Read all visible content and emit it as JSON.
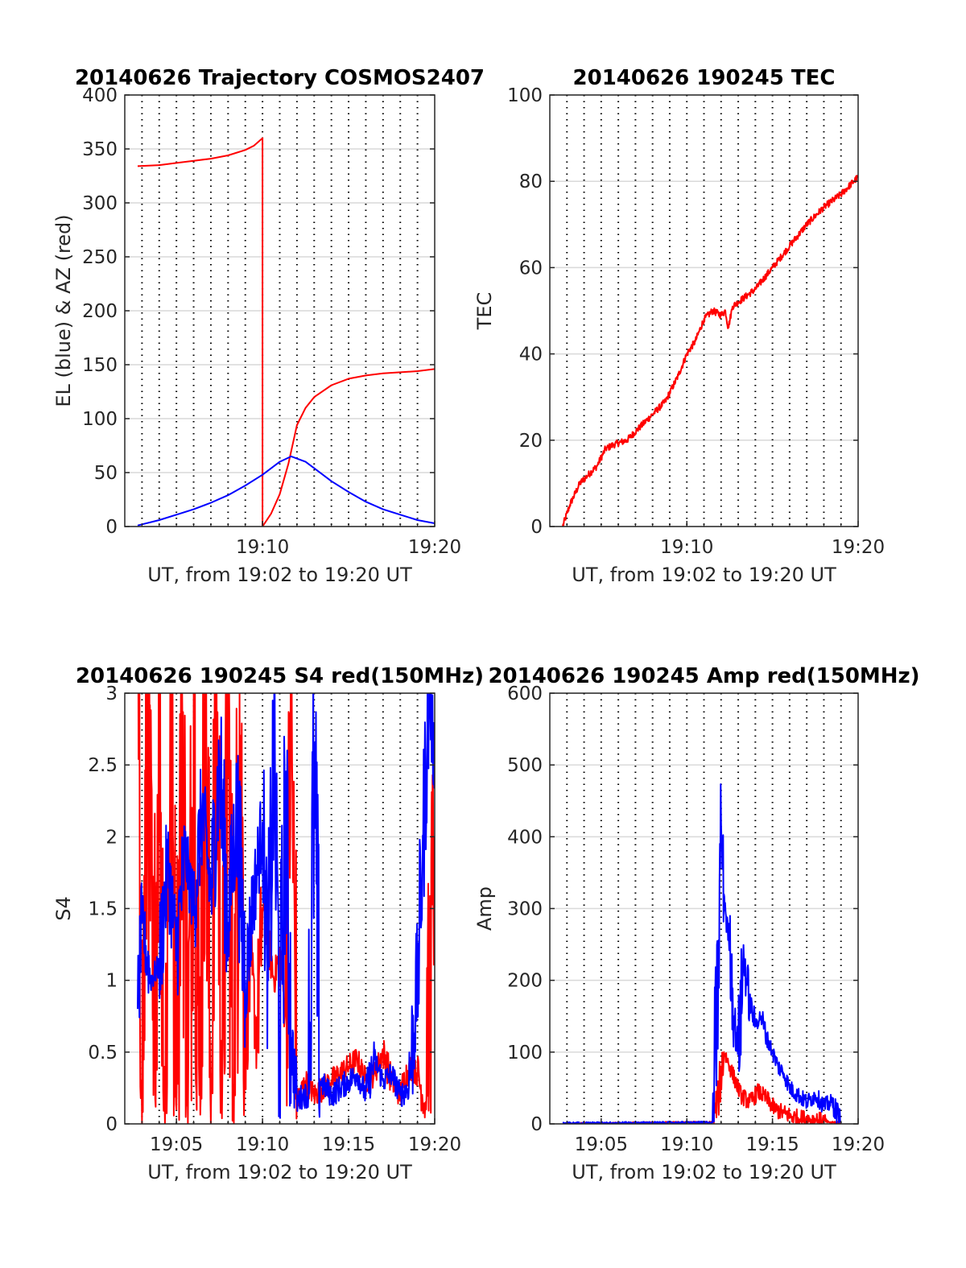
{
  "figure": {
    "background": "#ffffff",
    "grid_color": "#d9d9d9",
    "minor_grid_color": "#000000",
    "red": "#ff0000",
    "blue": "#0000ff"
  },
  "chart_data": [
    {
      "type": "line",
      "title": "20140626 Trajectory COSMOS2407",
      "xlabel": "UT, from 19:02 to 19:20 UT",
      "ylabel": "EL (blue) & AZ (red)",
      "xlim": [
        "19:02",
        "19:20"
      ],
      "ylim": [
        0,
        400
      ],
      "x_ticks": [
        "19:10",
        "19:20"
      ],
      "y_ticks": [
        "0",
        "50",
        "100",
        "150",
        "200",
        "250",
        "300",
        "350",
        "400"
      ],
      "grid": true,
      "minor_grid": true,
      "series": [
        {
          "color": "#ff0000",
          "x": [
            "19:02:45",
            "19:04:00",
            "19:05:00",
            "19:06:00",
            "19:07:00",
            "19:08:00",
            "19:09:00",
            "19:09:30",
            "19:10:00",
            "19:10:00",
            "19:10:30",
            "19:11:00",
            "19:11:30",
            "19:12:00",
            "19:12:30",
            "19:13:00",
            "19:14:00",
            "19:15:00",
            "19:16:00",
            "19:17:00",
            "19:18:00",
            "19:19:00",
            "19:20:00"
          ],
          "values": [
            334,
            335,
            337,
            339,
            341,
            344,
            349,
            353,
            360,
            0,
            12,
            30,
            58,
            94,
            110,
            120,
            131,
            137,
            140,
            142,
            143,
            144,
            146
          ]
        },
        {
          "color": "#0000ff",
          "x": [
            "19:02:45",
            "19:04:00",
            "19:05:00",
            "19:06:00",
            "19:07:00",
            "19:08:00",
            "19:09:00",
            "19:10:00",
            "19:11:00",
            "19:11:40",
            "19:12:30",
            "19:13:00",
            "19:14:00",
            "19:15:00",
            "19:16:00",
            "19:17:00",
            "19:18:00",
            "19:19:00",
            "19:20:00"
          ],
          "values": [
            1,
            6,
            11,
            16,
            22,
            29,
            38,
            48,
            60,
            65,
            60,
            54,
            42,
            32,
            23,
            16,
            11,
            6,
            3
          ]
        }
      ]
    },
    {
      "type": "line",
      "title": "20140626 190245 TEC",
      "xlabel": "UT, from 19:02 to 19:20 UT",
      "ylabel": "TEC",
      "xlim": [
        "19:02",
        "19:20"
      ],
      "ylim": [
        0,
        100
      ],
      "x_ticks": [
        "19:10",
        "19:20"
      ],
      "y_ticks": [
        "0",
        "20",
        "40",
        "60",
        "80",
        "100"
      ],
      "grid": true,
      "minor_grid": true,
      "series": [
        {
          "color": "#ff0000",
          "x": [
            "19:02:45",
            "19:03:10",
            "19:03:45",
            "19:04:15",
            "19:04:45",
            "19:05:15",
            "19:05:45",
            "19:06:30",
            "19:07:15",
            "19:08:00",
            "19:08:45",
            "19:09:30",
            "19:10:00",
            "19:10:30",
            "19:11:00",
            "19:11:30",
            "19:12:00",
            "19:12:15",
            "19:12:25",
            "19:12:40",
            "19:13:00",
            "19:14:00",
            "19:15:00",
            "19:16:00",
            "19:17:00",
            "19:18:00",
            "19:19:00",
            "19:20:00"
          ],
          "values": [
            0,
            5,
            10,
            12,
            14,
            18,
            19,
            20,
            23,
            26,
            29,
            35,
            40,
            43,
            48,
            50,
            49,
            50,
            46,
            51,
            52,
            55,
            60,
            65,
            70,
            74,
            77,
            81
          ]
        }
      ]
    },
    {
      "type": "line",
      "title": "20140626 190245 S4 red(150MHz)",
      "xlabel": "UT, from 19:02 to 19:20 UT",
      "ylabel": "S4",
      "xlim": [
        "19:02",
        "19:20"
      ],
      "ylim": [
        0,
        3
      ],
      "x_ticks": [
        "19:05",
        "19:10",
        "19:15",
        "19:20"
      ],
      "y_ticks": [
        "0",
        "0.5",
        "1",
        "1.5",
        "2",
        "2.5",
        "3"
      ],
      "grid": true,
      "minor_grid": true,
      "series": [
        {
          "color": "#ff0000",
          "x": [
            "19:02:45",
            "19:03:00",
            "19:03:20",
            "19:03:40",
            "19:04:00",
            "19:04:20",
            "19:04:40",
            "19:05:00",
            "19:05:20",
            "19:05:40",
            "19:06:00",
            "19:06:20",
            "19:06:40",
            "19:07:00",
            "19:07:20",
            "19:07:40",
            "19:08:00",
            "19:08:20",
            "19:08:40",
            "19:09:00",
            "19:09:20",
            "19:09:40",
            "19:10:00",
            "19:10:20",
            "19:10:40",
            "19:11:00",
            "19:11:20",
            "19:11:40",
            "19:12:00",
            "19:12:30",
            "19:13:00",
            "19:13:30",
            "19:14:00",
            "19:14:30",
            "19:15:00",
            "19:15:30",
            "19:16:00",
            "19:16:30",
            "19:17:00",
            "19:17:30",
            "19:18:00",
            "19:18:30",
            "19:19:00",
            "19:19:30",
            "19:20:00"
          ],
          "values": [
            3,
            0,
            3,
            0.2,
            3,
            0,
            3,
            0.1,
            3,
            0,
            3,
            0.2,
            3,
            0,
            3,
            0.3,
            2.8,
            0,
            3,
            0.5,
            1.1,
            0.6,
            1.5,
            1.3,
            1.0,
            1.2,
            0.8,
            2.8,
            0.15,
            0.3,
            0.2,
            0.25,
            0.3,
            0.35,
            0.4,
            0.45,
            0.3,
            0.35,
            0.5,
            0.3,
            0.2,
            0.4,
            0.35,
            0.1,
            2.0
          ]
        },
        {
          "color": "#0000ff",
          "x": [
            "19:02:45",
            "19:03:00",
            "19:03:30",
            "19:04:00",
            "19:04:30",
            "19:05:00",
            "19:05:30",
            "19:06:00",
            "19:06:30",
            "19:07:00",
            "19:07:30",
            "19:08:00",
            "19:08:30",
            "19:09:00",
            "19:09:30",
            "19:10:00",
            "19:10:20",
            "19:10:40",
            "19:11:00",
            "19:11:20",
            "19:11:40",
            "19:12:00",
            "19:12:20",
            "19:12:40",
            "19:13:00",
            "19:13:20",
            "19:13:40",
            "19:14:00",
            "19:14:30",
            "19:15:00",
            "19:15:30",
            "19:16:00",
            "19:16:30",
            "19:17:00",
            "19:17:30",
            "19:18:00",
            "19:18:30",
            "19:19:00",
            "19:19:20",
            "19:19:40",
            "19:20:00"
          ],
          "values": [
            0.8,
            1.4,
            1.0,
            1.1,
            1.8,
            1.2,
            1.9,
            1.5,
            2.2,
            1.6,
            2.5,
            1.4,
            2.2,
            1.0,
            1.6,
            2.1,
            1.0,
            2.6,
            0.5,
            2.2,
            0.6,
            0.15,
            0.2,
            0.2,
            2.4,
            0.3,
            0.25,
            0.2,
            0.25,
            0.3,
            0.35,
            0.2,
            0.45,
            0.3,
            0.35,
            0.2,
            0.25,
            1.0,
            2.0,
            3.0,
            2.5
          ]
        }
      ]
    },
    {
      "type": "line",
      "title": "20140626 190245 Amp red(150MHz)",
      "xlabel": "UT, from 19:02 to 19:20 UT",
      "ylabel": "Amp",
      "xlim": [
        "19:02",
        "19:20"
      ],
      "ylim": [
        0,
        600
      ],
      "x_ticks": [
        "19:05",
        "19:10",
        "19:15",
        "19:20"
      ],
      "y_ticks": [
        "0",
        "100",
        "200",
        "300",
        "400",
        "500",
        "600"
      ],
      "grid": true,
      "minor_grid": true,
      "series": [
        {
          "color": "#ff0000",
          "x": [
            "19:02:45",
            "19:11:30",
            "19:11:50",
            "19:12:10",
            "19:12:30",
            "19:12:50",
            "19:13:10",
            "19:13:40",
            "19:14:10",
            "19:14:40",
            "19:15:10",
            "19:15:40",
            "19:16:10",
            "19:16:40",
            "19:17:10",
            "19:17:40",
            "19:18:10",
            "19:18:40",
            "19:19:00"
          ],
          "values": [
            0,
            2,
            40,
            100,
            80,
            60,
            40,
            30,
            45,
            35,
            20,
            15,
            10,
            8,
            6,
            5,
            3,
            2,
            1
          ]
        },
        {
          "color": "#0000ff",
          "x": [
            "19:02:45",
            "19:11:30",
            "19:11:50",
            "19:12:00",
            "19:12:10",
            "19:12:20",
            "19:12:30",
            "19:12:45",
            "19:13:00",
            "19:13:20",
            "19:13:40",
            "19:14:00",
            "19:14:20",
            "19:14:40",
            "19:15:00",
            "19:15:20",
            "19:15:40",
            "19:16:00",
            "19:16:30",
            "19:17:00",
            "19:17:30",
            "19:18:00",
            "19:18:30",
            "19:19:00"
          ],
          "values": [
            1,
            2,
            200,
            420,
            320,
            280,
            250,
            150,
            100,
            230,
            170,
            140,
            150,
            120,
            100,
            80,
            70,
            50,
            40,
            30,
            40,
            25,
            30,
            3
          ]
        }
      ]
    }
  ]
}
